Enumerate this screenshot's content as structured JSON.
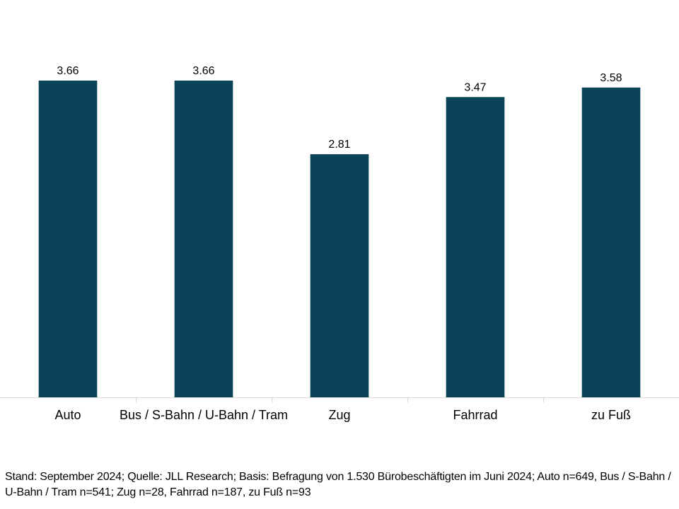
{
  "chart_data": {
    "type": "bar",
    "categories": [
      "Auto",
      "Bus / S-Bahn / U-Bahn / Tram",
      "Zug",
      "Fahrrad",
      "zu Fuß"
    ],
    "values": [
      3.66,
      3.66,
      2.81,
      3.47,
      3.58
    ],
    "value_labels": [
      "3.66",
      "3.66",
      "2.81",
      "3.47",
      "3.58"
    ],
    "title": "",
    "xlabel": "",
    "ylabel": "",
    "ylim": [
      0,
      4
    ],
    "grid": false,
    "legend": "none",
    "bar_color": "#0b4459",
    "axis_color": "#d9d9d9"
  },
  "footnote": "Stand: September 2024; Quelle: JLL Research; Basis: Befragung von 1.530 Bürobeschäftigten im Juni 2024; Auto n=649, Bus / S-Bahn / U-Bahn / Tram n=541; Zug n=28, Fahrrad n=187, zu Fuß n=93"
}
